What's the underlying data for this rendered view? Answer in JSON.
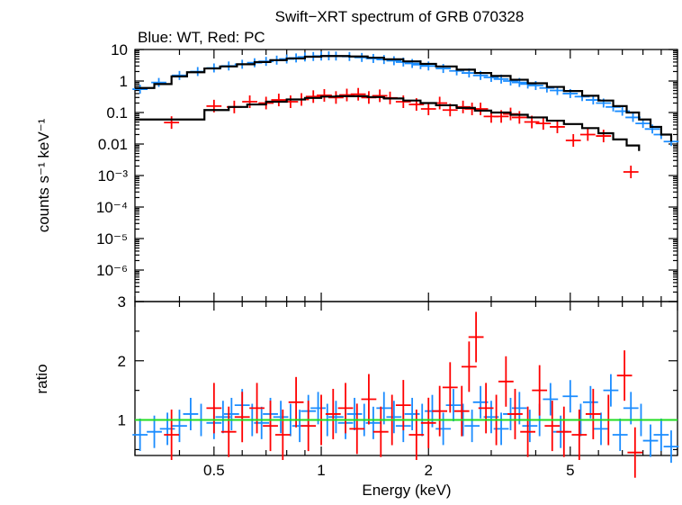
{
  "chart_data": [
    {
      "type": "scatter",
      "title": "Swift−XRT spectrum of GRB 070328",
      "subtitle": "Blue: WT, Red: PC",
      "xlabel": "",
      "ylabel": "counts s⁻¹ keV⁻¹",
      "xscale": "log",
      "yscale": "log",
      "xlim": [
        0.3,
        10
      ],
      "ylim": [
        1e-07,
        10
      ],
      "y_tick_labels": [
        "10",
        "1",
        "0.1",
        "0.01",
        "10⁻³",
        "10⁻⁴",
        "10⁻⁵",
        "10⁻⁶"
      ],
      "y_tick_values": [
        10,
        1,
        0.1,
        0.01,
        0.001,
        0.0001,
        1e-05,
        1e-06
      ],
      "colors": {
        "wt": "#1a8cff",
        "pc": "#ff0000",
        "model": "#000000"
      },
      "series": [
        {
          "name": "WT",
          "x": [
            0.31,
            0.35,
            0.4,
            0.45,
            0.5,
            0.55,
            0.6,
            0.65,
            0.7,
            0.75,
            0.8,
            0.85,
            0.9,
            0.95,
            1.0,
            1.05,
            1.1,
            1.2,
            1.3,
            1.4,
            1.5,
            1.6,
            1.7,
            1.8,
            1.9,
            2.0,
            2.2,
            2.4,
            2.6,
            2.8,
            3.0,
            3.2,
            3.4,
            3.6,
            3.8,
            4.0,
            4.3,
            4.6,
            5.0,
            5.4,
            5.8,
            6.2,
            6.6,
            7.0,
            7.5,
            8.0,
            8.5,
            9.0,
            9.6
          ],
          "y": [
            0.55,
            0.9,
            1.5,
            2.0,
            2.6,
            3.0,
            3.4,
            3.8,
            4.2,
            4.6,
            5.0,
            5.4,
            5.8,
            6.0,
            6.2,
            6.3,
            6.2,
            6.0,
            5.6,
            5.2,
            4.8,
            4.4,
            4.0,
            3.6,
            3.3,
            3.0,
            2.5,
            2.1,
            1.8,
            1.5,
            1.3,
            1.15,
            1.0,
            0.9,
            0.8,
            0.72,
            0.6,
            0.5,
            0.4,
            0.32,
            0.25,
            0.2,
            0.15,
            0.11,
            0.07,
            0.045,
            0.03,
            0.02,
            0.012
          ]
        },
        {
          "name": "PC",
          "x": [
            0.38,
            0.5,
            0.57,
            0.63,
            0.7,
            0.76,
            0.82,
            0.88,
            0.95,
            1.02,
            1.1,
            1.18,
            1.27,
            1.36,
            1.46,
            1.56,
            1.7,
            1.85,
            2.0,
            2.15,
            2.3,
            2.5,
            2.65,
            2.8,
            3.0,
            3.2,
            3.4,
            3.6,
            3.9,
            4.2,
            4.6,
            5.1,
            5.6,
            6.2,
            7.4
          ],
          "y": [
            0.048,
            0.16,
            0.15,
            0.22,
            0.2,
            0.25,
            0.22,
            0.26,
            0.32,
            0.35,
            0.3,
            0.36,
            0.38,
            0.3,
            0.34,
            0.29,
            0.22,
            0.18,
            0.13,
            0.2,
            0.12,
            0.15,
            0.13,
            0.13,
            0.075,
            0.075,
            0.09,
            0.07,
            0.05,
            0.045,
            0.035,
            0.013,
            0.02,
            0.018,
            0.0013
          ]
        },
        {
          "name": "WT model",
          "x": [
            0.3,
            0.34,
            0.38,
            0.42,
            0.47,
            0.52,
            0.58,
            0.65,
            0.72,
            0.8,
            0.9,
            1.0,
            1.1,
            1.2,
            1.35,
            1.5,
            1.7,
            1.9,
            2.1,
            2.4,
            2.7,
            3.0,
            3.4,
            3.8,
            4.3,
            4.8,
            5.4,
            6.0,
            6.6,
            7.2,
            7.8,
            8.4,
            9.0,
            9.6
          ],
          "y": [
            0.6,
            0.8,
            1.4,
            1.9,
            2.5,
            2.9,
            3.4,
            4.0,
            4.6,
            5.2,
            5.9,
            6.2,
            6.2,
            6.0,
            5.5,
            4.9,
            4.2,
            3.5,
            2.9,
            2.3,
            1.8,
            1.45,
            1.1,
            0.85,
            0.65,
            0.48,
            0.34,
            0.24,
            0.16,
            0.1,
            0.06,
            0.035,
            0.02,
            0.012
          ]
        },
        {
          "name": "PC model",
          "x": [
            0.3,
            0.47,
            0.55,
            0.62,
            0.7,
            0.8,
            0.9,
            1.0,
            1.1,
            1.2,
            1.35,
            1.5,
            1.7,
            1.9,
            2.1,
            2.4,
            2.7,
            3.0,
            3.4,
            3.8,
            4.3,
            4.8,
            5.4,
            6.0,
            6.6,
            7.2,
            7.8
          ],
          "y": [
            0.06,
            0.12,
            0.15,
            0.18,
            0.22,
            0.26,
            0.29,
            0.32,
            0.33,
            0.33,
            0.31,
            0.28,
            0.24,
            0.2,
            0.17,
            0.14,
            0.115,
            0.1,
            0.085,
            0.07,
            0.055,
            0.043,
            0.032,
            0.022,
            0.014,
            0.009,
            0.006
          ]
        }
      ]
    },
    {
      "type": "scatter",
      "title": "",
      "xlabel": "Energy (keV)",
      "ylabel": "ratio",
      "xscale": "log",
      "xlim": [
        0.3,
        10
      ],
      "ylim": [
        0.4,
        3
      ],
      "x_tick_labels": [
        "0.5",
        "1",
        "2",
        "5"
      ],
      "x_tick_values": [
        0.5,
        1,
        2,
        5
      ],
      "y_tick_labels": [
        "1",
        "2",
        "3"
      ],
      "y_tick_values": [
        1,
        2,
        3
      ],
      "reference_line": {
        "y": 1,
        "color": "#22dd22"
      },
      "series": [
        {
          "name": "WT",
          "x": [
            0.31,
            0.34,
            0.37,
            0.4,
            0.43,
            0.46,
            0.5,
            0.53,
            0.56,
            0.6,
            0.64,
            0.68,
            0.72,
            0.77,
            0.82,
            0.87,
            0.92,
            0.98,
            1.04,
            1.1,
            1.17,
            1.24,
            1.32,
            1.4,
            1.5,
            1.6,
            1.7,
            1.8,
            1.92,
            2.05,
            2.2,
            2.35,
            2.5,
            2.65,
            2.8,
            3.0,
            3.2,
            3.4,
            3.6,
            3.85,
            4.1,
            4.4,
            4.7,
            5.0,
            5.35,
            5.7,
            6.1,
            6.5,
            6.9,
            7.4,
            7.9,
            8.4,
            9.0,
            9.6
          ],
          "y": [
            0.75,
            0.8,
            0.85,
            0.9,
            1.1,
            1.0,
            0.95,
            1.05,
            1.1,
            1.25,
            1.0,
            0.95,
            1.1,
            1.05,
            1.0,
            0.9,
            1.15,
            1.2,
            1.0,
            1.05,
            0.95,
            1.1,
            1.0,
            0.95,
            1.2,
            1.05,
            0.9,
            1.1,
            1.0,
            1.15,
            0.85,
            1.25,
            1.0,
            0.9,
            1.3,
            1.05,
            0.85,
            1.1,
            1.2,
            0.9,
            1.0,
            1.35,
            0.8,
            1.4,
            1.0,
            1.3,
            0.85,
            1.5,
            0.75,
            1.2,
            1.0,
            0.65,
            0.75,
            0.55
          ]
        },
        {
          "name": "PC",
          "x": [
            0.38,
            0.5,
            0.55,
            0.6,
            0.66,
            0.72,
            0.78,
            0.85,
            0.92,
            1.0,
            1.08,
            1.17,
            1.26,
            1.36,
            1.47,
            1.58,
            1.7,
            1.85,
            2.0,
            2.15,
            2.3,
            2.48,
            2.6,
            2.72,
            2.9,
            3.1,
            3.3,
            3.5,
            3.8,
            4.1,
            4.45,
            4.8,
            5.3,
            5.8,
            6.4,
            7.1,
            7.6
          ],
          "y": [
            0.75,
            1.2,
            0.8,
            1.05,
            1.2,
            0.9,
            0.75,
            1.3,
            0.9,
            1.0,
            1.1,
            1.2,
            0.85,
            1.35,
            0.8,
            1.0,
            1.25,
            0.75,
            0.95,
            1.15,
            1.55,
            1.15,
            1.9,
            2.4,
            1.2,
            1.0,
            1.65,
            1.1,
            0.8,
            1.5,
            0.9,
            0.8,
            0.75,
            1.1,
            1.0,
            1.75,
            0.45
          ]
        }
      ]
    }
  ]
}
